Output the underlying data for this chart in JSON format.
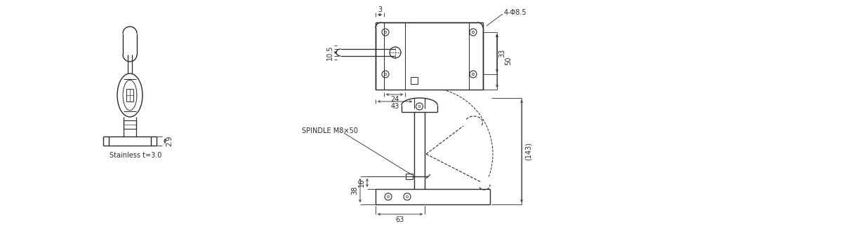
{
  "bg_color": "#ffffff",
  "line_color": "#2a2a2a",
  "dim_color": "#2a2a2a",
  "fig_width": 11.98,
  "fig_height": 3.5,
  "dpi": 100,
  "annotations": {
    "dim_4phi85": "4-Φ8.5",
    "dim_3": "3",
    "dim_10p5": "10.5",
    "dim_33": "33",
    "dim_50": "50",
    "dim_24": "24",
    "dim_43": "43",
    "dim_spindle": "SPINDLE M8×50",
    "dim_16": "16",
    "dim_38": "38",
    "dim_63": "63",
    "dim_143": "(143)",
    "dim_2p9": "2.9",
    "stainless": "Stainless t=3.0"
  },
  "font_size": 7.0
}
